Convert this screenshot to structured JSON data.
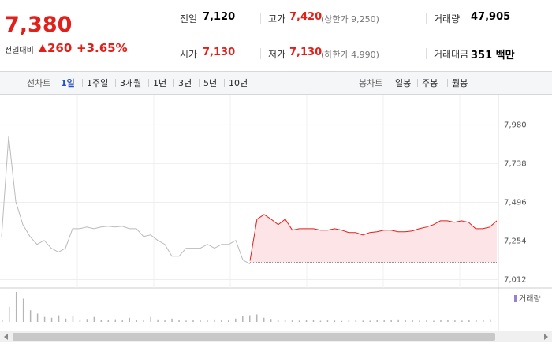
{
  "quote": {
    "price": "7,380",
    "change_label": "전일대비",
    "change": "260",
    "change_pct": "+3.65%"
  },
  "stats": [
    {
      "label": "전일",
      "value": "7,120"
    },
    {
      "label": "고가",
      "value": "7,420",
      "note": "(상한가 9,250)"
    },
    {
      "label": "거래량",
      "value": "47,905"
    },
    {
      "label": "시가",
      "value": "7,130"
    },
    {
      "label": "저가",
      "value": "7,130",
      "note": "(하한가 4,990)"
    },
    {
      "label": "거래대금",
      "value": "351 백만"
    }
  ],
  "tabs": {
    "line_label": "선차트",
    "line_periods": [
      "1일",
      "1주일",
      "3개월",
      "1년",
      "3년",
      "5년",
      "10년"
    ],
    "active": 0,
    "candle_label": "봉차트",
    "candle_periods": [
      "일봉",
      "주봉",
      "월봉"
    ]
  },
  "chart_data": {
    "type": "line",
    "ylim": [
      6970,
      8130
    ],
    "yticks": [
      {
        "value": 7980,
        "label": "7,980"
      },
      {
        "value": 7738,
        "label": "7,738"
      },
      {
        "value": 7496,
        "label": "7,496"
      },
      {
        "value": 7254,
        "label": "7,254"
      },
      {
        "value": 7012,
        "label": "7,012"
      }
    ],
    "prev_close": 7120,
    "series": [
      {
        "color": "#bbbbbb",
        "values": [
          7282,
          7911,
          7500,
          7356,
          7282,
          7233,
          7258,
          7209,
          7184,
          7209,
          7331,
          7331,
          7341,
          7331,
          7341,
          7346,
          7341,
          7346,
          7331,
          7331,
          7282,
          7292,
          7258,
          7233,
          7159,
          7159,
          7209,
          7209,
          7209,
          7233,
          7209,
          7233,
          7233,
          7258,
          7135,
          7110
        ]
      },
      {
        "color": "#e0201b",
        "values": [
          7130,
          7390,
          7420,
          7390,
          7356,
          7390,
          7322,
          7331,
          7331,
          7331,
          7322,
          7322,
          7331,
          7322,
          7307,
          7307,
          7292,
          7307,
          7312,
          7322,
          7322,
          7312,
          7312,
          7317,
          7331,
          7341,
          7356,
          7380,
          7380,
          7371,
          7380,
          7371,
          7331,
          7331,
          7341,
          7380
        ]
      }
    ],
    "volume": {
      "name": "거래량",
      "color": "#9b7fd1",
      "bar_color": "#b5b5b5",
      "values": [
        120,
        900,
        1800,
        1400,
        700,
        500,
        300,
        250,
        400,
        200,
        350,
        150,
        180,
        300,
        120,
        100,
        160,
        90,
        250,
        140,
        110,
        300,
        150,
        90,
        200,
        130,
        80,
        120,
        100,
        90,
        150,
        110,
        130,
        200,
        350,
        400,
        450,
        250,
        180,
        120,
        100,
        90,
        80,
        120,
        110,
        70,
        90,
        80,
        60,
        90,
        110,
        80,
        70,
        100,
        90,
        120,
        150,
        130,
        100,
        80,
        90,
        70,
        110,
        120,
        90,
        80,
        100,
        110,
        140,
        160
      ]
    }
  }
}
